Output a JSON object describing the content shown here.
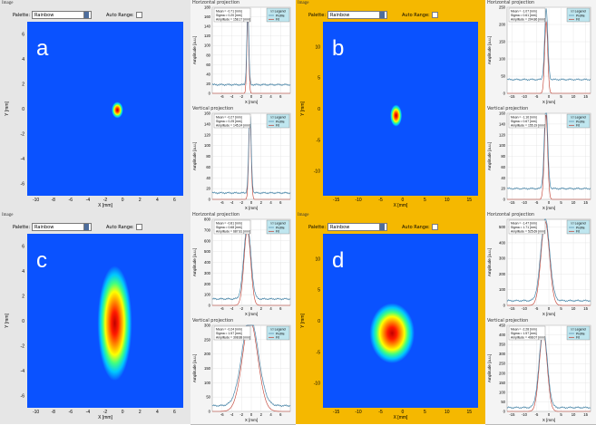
{
  "colors": {
    "image_bg": "#0a52ff",
    "frame_bg": "#e6e6e6",
    "highlight_bg": "#f5b800",
    "profile_line": "#4a86a8",
    "fit_line": "#c0392b",
    "legend_bg": "#bfe6ef"
  },
  "common": {
    "image_label": "Image",
    "palette_label": "Palette:",
    "palette_value": "Rainbow",
    "auto_range_label": "Auto Range:",
    "h_proj_title": "Horizontal projection",
    "v_proj_title": "Vertical projection",
    "x_axis_label": "X [mm]",
    "y_axis_label": "Y [mm]",
    "amp_label": "Amplitude [a.u.]",
    "legend_title": "☑ Legend",
    "legend_profile": "Profile",
    "legend_fit": "Fit"
  },
  "panels": [
    {
      "letter": "a",
      "highlight": false,
      "image_x_ticks": [
        "-10",
        "-8",
        "-6",
        "-4",
        "-2",
        "0",
        "2",
        "4",
        "6"
      ],
      "image_y_ticks": [
        "6",
        "4",
        "2",
        "0",
        "-2",
        "-4",
        "-6"
      ],
      "image_x_domain": [
        -11,
        7
      ],
      "image_y_domain": [
        -7,
        7
      ],
      "spot": {
        "x": -0.6,
        "y": -0.1,
        "sx": 0.3,
        "sy": 0.3
      },
      "h_stats": [
        "Mean = -0.71 [mm]",
        "Sigma = 0.20 [mm]",
        "Amplitude = 158.17 [mm]"
      ],
      "v_stats": [
        "Mean = -0.27 [mm]",
        "Sigma = 0.25 [mm]",
        "Amplitude = 145.24 [mm]"
      ],
      "h_y_ticks": [
        "0",
        "20",
        "40",
        "60",
        "80",
        "100",
        "120",
        "140",
        "160",
        "180"
      ],
      "v_y_ticks": [
        "0",
        "20",
        "40",
        "60",
        "80",
        "100",
        "120",
        "140",
        "160"
      ],
      "proj_x_ticks": [
        "-6",
        "-4",
        "-2",
        "0",
        "2",
        "4",
        "6"
      ],
      "h_proj": {
        "x_domain": [
          -8,
          8
        ],
        "y_domain": [
          0,
          180
        ],
        "mean": -0.71,
        "sigma": 0.2,
        "amplitude": 158.17,
        "baseline": 18
      },
      "v_proj": {
        "x_domain": [
          -8,
          8
        ],
        "y_domain": [
          0,
          160
        ],
        "mean": -0.27,
        "sigma": 0.25,
        "amplitude": 145.24,
        "baseline": 12
      }
    },
    {
      "letter": "b",
      "highlight": true,
      "image_x_ticks": [
        "-15",
        "-10",
        "-5",
        "0",
        "5",
        "10",
        "15"
      ],
      "image_y_ticks": [
        "10",
        "5",
        "0",
        "-5",
        "-10"
      ],
      "image_x_domain": [
        -18,
        17
      ],
      "image_y_domain": [
        -14,
        14
      ],
      "spot": {
        "x": -1.5,
        "y": -1.1,
        "sx": 0.6,
        "sy": 0.8
      },
      "h_stats": [
        "Mean = -1.07 [mm]",
        "Sigma = 0.61 [mm]",
        "Amplitude = 204.86 [mm]"
      ],
      "v_stats": [
        "Mean = -1.16 [mm]",
        "Sigma = 0.67 [mm]",
        "Amplitude = 155.19 [mm]"
      ],
      "h_y_ticks": [
        "0",
        "50",
        "100",
        "150",
        "200",
        "250"
      ],
      "v_y_ticks": [
        "0",
        "20",
        "40",
        "60",
        "80",
        "100",
        "120",
        "140",
        "160"
      ],
      "proj_x_ticks": [
        "-15",
        "-10",
        "-5",
        "0",
        "5",
        "10",
        "15"
      ],
      "h_proj": {
        "x_domain": [
          -17,
          17
        ],
        "y_domain": [
          0,
          250
        ],
        "mean": -1.07,
        "sigma": 0.61,
        "amplitude": 204.86,
        "baseline": 40
      },
      "v_proj": {
        "x_domain": [
          -17,
          17
        ],
        "y_domain": [
          0,
          160
        ],
        "mean": -1.16,
        "sigma": 0.67,
        "amplitude": 155.19,
        "baseline": 20
      }
    },
    {
      "letter": "c",
      "highlight": false,
      "image_x_ticks": [
        "-10",
        "-8",
        "-6",
        "-4",
        "-2",
        "0",
        "2",
        "4",
        "6"
      ],
      "image_y_ticks": [
        "6",
        "4",
        "2",
        "0",
        "-2",
        "-4",
        "-6"
      ],
      "image_x_domain": [
        -11,
        7
      ],
      "image_y_domain": [
        -7,
        7
      ],
      "spot": {
        "x": -0.9,
        "y": -0.2,
        "sx": 0.9,
        "sy": 2.1
      },
      "h_stats": [
        "Mean = -0.81 [mm]",
        "Sigma = 0.68 [mm]",
        "Amplitude = 687.81 [mm]"
      ],
      "v_stats": [
        "Mean = -0.24 [mm]",
        "Sigma = 1.57 [mm]",
        "Amplitude = 308.88 [mm]"
      ],
      "h_y_ticks": [
        "0",
        "100",
        "200",
        "300",
        "400",
        "500",
        "600",
        "700",
        "800"
      ],
      "v_y_ticks": [
        "0",
        "50",
        "100",
        "150",
        "200",
        "250",
        "300"
      ],
      "proj_x_ticks": [
        "-6",
        "-4",
        "-2",
        "0",
        "2",
        "4",
        "6"
      ],
      "h_proj": {
        "x_domain": [
          -8,
          8
        ],
        "y_domain": [
          0,
          800
        ],
        "mean": -0.81,
        "sigma": 0.68,
        "amplitude": 687.81,
        "baseline": 60
      },
      "v_proj": {
        "x_domain": [
          -8,
          8
        ],
        "y_domain": [
          0,
          300
        ],
        "mean": -0.24,
        "sigma": 1.57,
        "amplitude": 308.88,
        "baseline": 20
      }
    },
    {
      "letter": "d",
      "highlight": true,
      "image_x_ticks": [
        "-15",
        "-10",
        "-5",
        "0",
        "5",
        "10",
        "15"
      ],
      "image_y_ticks": [
        "10",
        "5",
        "0",
        "-5",
        "-10"
      ],
      "image_x_domain": [
        -18,
        17
      ],
      "image_y_domain": [
        -14,
        14
      ],
      "spot": {
        "x": -2.4,
        "y": -2.0,
        "sx": 2.3,
        "sy": 2.2
      },
      "h_stats": [
        "Mean = -1.47 [mm]",
        "Sigma = 1.71 [mm]",
        "Amplitude = 525.69 [mm]"
      ],
      "v_stats": [
        "Mean = -2.28 [mm]",
        "Sigma = 1.57 [mm]",
        "Amplitude = 408.07 [mm]"
      ],
      "h_y_ticks": [
        "0",
        "100",
        "200",
        "300",
        "400",
        "500"
      ],
      "v_y_ticks": [
        "0",
        "50",
        "100",
        "150",
        "200",
        "250",
        "300",
        "350",
        "400",
        "450"
      ],
      "proj_x_ticks": [
        "-15",
        "-10",
        "-5",
        "0",
        "5",
        "10",
        "15"
      ],
      "h_proj": {
        "x_domain": [
          -17,
          17
        ],
        "y_domain": [
          0,
          550
        ],
        "mean": -1.47,
        "sigma": 1.71,
        "amplitude": 525.69,
        "baseline": 30
      },
      "v_proj": {
        "x_domain": [
          -17,
          17
        ],
        "y_domain": [
          0,
          450
        ],
        "mean": -2.28,
        "sigma": 1.57,
        "amplitude": 408.07,
        "baseline": 20
      }
    }
  ]
}
